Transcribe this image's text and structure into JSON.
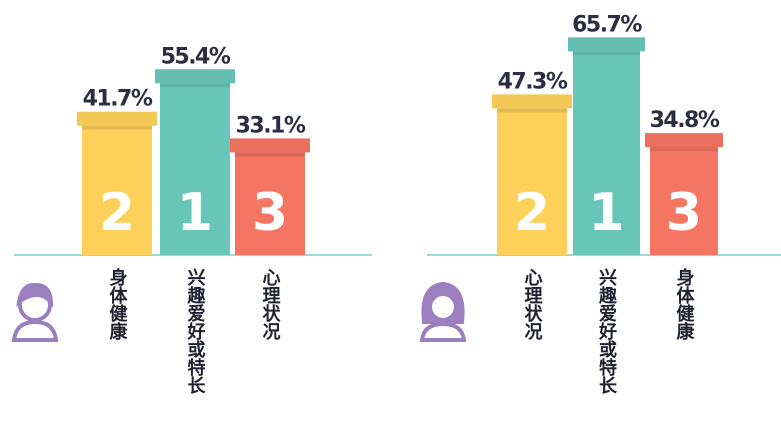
{
  "chart_data": [
    {
      "type": "bar",
      "categories": [
        "身体健康",
        "兴趣爱好或特长",
        "心理状况"
      ],
      "values": [
        41.7,
        55.4,
        33.1
      ],
      "value_labels": [
        "41.7%",
        "55.4%",
        "33.1%"
      ],
      "ranks": [
        2,
        1,
        3
      ],
      "colors": [
        "#fdd05a",
        "#68c6b8",
        "#f47561"
      ]
    },
    {
      "type": "bar",
      "categories": [
        "心理状况",
        "兴趣爱好或特长",
        "身体健康"
      ],
      "values": [
        47.3,
        65.7,
        34.8
      ],
      "value_labels": [
        "47.3%",
        "65.7%",
        "34.8%"
      ],
      "ranks": [
        2,
        1,
        3
      ],
      "colors": [
        "#fdd05a",
        "#68c6b8",
        "#f47561"
      ]
    }
  ]
}
